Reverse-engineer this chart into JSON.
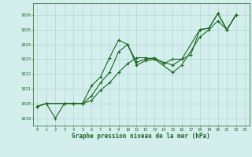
{
  "title": "Graphe pression niveau de la mer (hPa)",
  "bg_color": "#d4eeee",
  "grid_color": "#b0d8cc",
  "line_color": "#1a6620",
  "xlim": [
    -0.5,
    23.5
  ],
  "ylim": [
    1018.5,
    1026.8
  ],
  "yticks": [
    1019,
    1020,
    1021,
    1022,
    1023,
    1024,
    1025,
    1026
  ],
  "xticks": [
    0,
    1,
    2,
    3,
    4,
    5,
    6,
    7,
    8,
    9,
    10,
    11,
    12,
    13,
    14,
    15,
    16,
    17,
    18,
    19,
    20,
    21,
    22,
    23
  ],
  "series1_x": [
    0,
    1,
    2,
    3,
    4,
    5,
    6,
    7,
    8,
    9,
    10,
    11,
    12,
    13,
    14,
    15,
    16,
    17,
    18,
    19,
    20,
    21,
    22
  ],
  "series1_y": [
    1019.8,
    1020.0,
    1019.0,
    1020.0,
    1020.0,
    1020.0,
    1021.2,
    1021.8,
    1023.1,
    1024.3,
    1024.0,
    1022.8,
    1023.0,
    1023.1,
    1022.7,
    1023.0,
    1023.0,
    1023.3,
    1025.0,
    1025.1,
    1026.1,
    1025.0,
    1026.0
  ],
  "series2_x": [
    0,
    1,
    3,
    4,
    5,
    6,
    7,
    8,
    9,
    10,
    11,
    12,
    13,
    15,
    16,
    18,
    19,
    20,
    21,
    22
  ],
  "series2_y": [
    1019.8,
    1020.0,
    1020.0,
    1020.0,
    1020.0,
    1020.5,
    1021.4,
    1022.1,
    1023.5,
    1024.0,
    1022.6,
    1022.9,
    1023.0,
    1022.6,
    1023.0,
    1025.0,
    1025.1,
    1026.1,
    1025.0,
    1026.0
  ],
  "series3_x": [
    0,
    1,
    3,
    4,
    5,
    6,
    7,
    8,
    9,
    10,
    11,
    12,
    13,
    15,
    16,
    18,
    19,
    20,
    21,
    22
  ],
  "series3_y": [
    1019.8,
    1020.0,
    1020.0,
    1020.0,
    1020.0,
    1020.2,
    1020.9,
    1021.4,
    1022.1,
    1022.7,
    1023.1,
    1023.1,
    1023.0,
    1022.1,
    1022.6,
    1024.5,
    1025.0,
    1025.6,
    1025.0,
    1026.0
  ]
}
